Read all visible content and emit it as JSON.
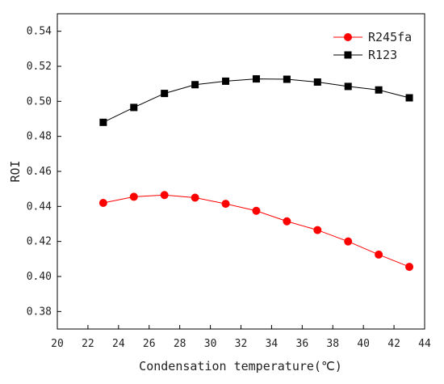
{
  "chart_data": {
    "type": "line",
    "xlabel": "Condensation temperature(℃)",
    "ylabel": "ROI",
    "xlim": [
      20,
      44
    ],
    "ylim": [
      0.37,
      0.55
    ],
    "x_ticks": [
      20,
      22,
      24,
      26,
      28,
      30,
      32,
      34,
      36,
      38,
      40,
      42,
      44
    ],
    "y_ticks": [
      0.38,
      0.4,
      0.42,
      0.44,
      0.46,
      0.48,
      0.5,
      0.52,
      0.54
    ],
    "x_tick_labels": [
      "20",
      "22",
      "24",
      "26",
      "28",
      "30",
      "32",
      "34",
      "36",
      "38",
      "40",
      "42",
      "44"
    ],
    "y_tick_labels": [
      "0.38",
      "0.40",
      "0.42",
      "0.44",
      "0.46",
      "0.48",
      "0.50",
      "0.52",
      "0.54"
    ],
    "grid": false,
    "legend_position": "top-right",
    "x": [
      23,
      25,
      27,
      29,
      31,
      33,
      35,
      37,
      39,
      41,
      43
    ],
    "series": [
      {
        "name": "R245fa",
        "color": "#ff0000",
        "marker": "circle",
        "values": [
          0.442,
          0.4455,
          0.4465,
          0.445,
          0.4415,
          0.4375,
          0.4315,
          0.4265,
          0.42,
          0.4125,
          0.4055
        ]
      },
      {
        "name": "R123",
        "color": "#000000",
        "marker": "square",
        "values": [
          0.488,
          0.4965,
          0.5045,
          0.5095,
          0.5115,
          0.5128,
          0.5126,
          0.511,
          0.5085,
          0.5065,
          0.502
        ]
      }
    ]
  }
}
